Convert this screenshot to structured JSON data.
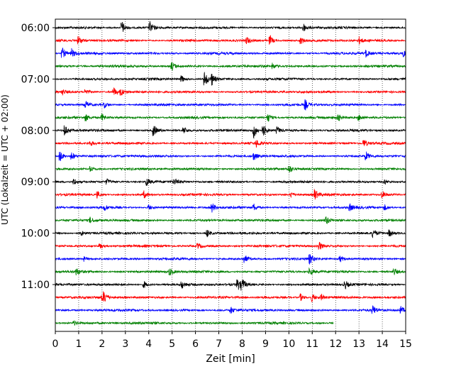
{
  "chart_data": {
    "type": "line",
    "xlabel": "Zeit  [min]",
    "ylabel": "UTC (Lokalzeit = UTC + 02:00)",
    "xlim": [
      0,
      15
    ],
    "x_ticks": [
      "0",
      "1",
      "2",
      "3",
      "4",
      "5",
      "6",
      "7",
      "8",
      "9",
      "10",
      "11",
      "12",
      "13",
      "14",
      "15"
    ],
    "y_ticks": [
      "06:00",
      "07:00",
      "08:00",
      "09:00",
      "10:00",
      "11:00"
    ],
    "grid": "vertical-dotted",
    "traces_per_hour": 4,
    "trace_minutes": 15,
    "color_cycle": [
      "#000000",
      "#ff0000",
      "#0000ff",
      "#008000"
    ],
    "traces": [
      {
        "start": "06:00",
        "end_min": 15,
        "events": [
          [
            2.85,
            1.0
          ],
          [
            4.05,
            0.8
          ],
          [
            10.6,
            0.7
          ]
        ]
      },
      {
        "start": "06:15",
        "end_min": 15,
        "events": [
          [
            1.0,
            0.6
          ],
          [
            8.2,
            0.5
          ],
          [
            9.2,
            0.7
          ],
          [
            10.5,
            0.5
          ],
          [
            13.0,
            0.5
          ]
        ]
      },
      {
        "start": "06:30",
        "end_min": 15,
        "events": [
          [
            0.3,
            0.8
          ],
          [
            0.7,
            0.6
          ],
          [
            13.3,
            0.5
          ],
          [
            14.9,
            0.5
          ]
        ]
      },
      {
        "start": "06:45",
        "end_min": 15,
        "events": [
          [
            5.0,
            0.6
          ],
          [
            9.3,
            0.4
          ]
        ]
      },
      {
        "start": "07:00",
        "end_min": 15,
        "events": [
          [
            5.4,
            0.5
          ],
          [
            6.4,
            1.2
          ],
          [
            6.7,
            0.8
          ]
        ]
      },
      {
        "start": "07:15",
        "end_min": 15,
        "events": [
          [
            0.3,
            0.4
          ],
          [
            1.3,
            0.5
          ],
          [
            2.5,
            0.6
          ],
          [
            2.8,
            0.5
          ]
        ]
      },
      {
        "start": "07:30",
        "end_min": 15,
        "events": [
          [
            1.3,
            0.5
          ],
          [
            2.1,
            0.4
          ],
          [
            10.7,
            0.7
          ]
        ]
      },
      {
        "start": "07:45",
        "end_min": 15,
        "events": [
          [
            1.3,
            0.5
          ],
          [
            2.0,
            0.5
          ],
          [
            9.1,
            0.6
          ],
          [
            12.1,
            0.5
          ],
          [
            13.0,
            0.4
          ]
        ]
      },
      {
        "start": "08:00",
        "end_min": 15,
        "events": [
          [
            0.4,
            0.8
          ],
          [
            4.2,
            0.9
          ],
          [
            5.5,
            0.5
          ],
          [
            8.5,
            1.1
          ],
          [
            8.9,
            0.9
          ],
          [
            9.5,
            0.5
          ]
        ]
      },
      {
        "start": "08:15",
        "end_min": 15,
        "events": [
          [
            1.5,
            0.4
          ],
          [
            8.6,
            0.5
          ],
          [
            13.2,
            0.6
          ]
        ]
      },
      {
        "start": "08:30",
        "end_min": 15,
        "events": [
          [
            0.2,
            0.8
          ],
          [
            0.7,
            0.6
          ],
          [
            8.5,
            0.6
          ],
          [
            13.3,
            0.6
          ]
        ]
      },
      {
        "start": "08:45",
        "end_min": 15,
        "events": [
          [
            1.5,
            0.4
          ],
          [
            10.0,
            0.6
          ]
        ]
      },
      {
        "start": "09:00",
        "end_min": 15,
        "events": [
          [
            0.8,
            0.5
          ],
          [
            2.2,
            0.4
          ],
          [
            3.9,
            0.6
          ],
          [
            5.1,
            0.4
          ],
          [
            14.1,
            0.4
          ]
        ]
      },
      {
        "start": "09:15",
        "end_min": 15,
        "events": [
          [
            1.8,
            0.5
          ],
          [
            3.8,
            0.5
          ],
          [
            10.1,
            0.4
          ],
          [
            11.1,
            0.8
          ],
          [
            14.0,
            0.5
          ]
        ]
      },
      {
        "start": "09:30",
        "end_min": 15,
        "events": [
          [
            2.1,
            0.4
          ],
          [
            4.0,
            0.4
          ],
          [
            6.7,
            0.7
          ],
          [
            8.5,
            0.5
          ],
          [
            12.6,
            0.5
          ],
          [
            14.1,
            0.4
          ]
        ]
      },
      {
        "start": "09:45",
        "end_min": 15,
        "events": [
          [
            1.5,
            0.4
          ],
          [
            11.6,
            0.6
          ]
        ]
      },
      {
        "start": "10:00",
        "end_min": 15,
        "events": [
          [
            1.1,
            0.4
          ],
          [
            6.5,
            0.6
          ],
          [
            13.6,
            0.6
          ],
          [
            14.3,
            0.5
          ]
        ]
      },
      {
        "start": "10:15",
        "end_min": 15,
        "events": [
          [
            1.9,
            0.4
          ],
          [
            6.1,
            0.4
          ],
          [
            11.3,
            0.6
          ]
        ]
      },
      {
        "start": "10:30",
        "end_min": 15,
        "events": [
          [
            1.2,
            0.4
          ],
          [
            8.1,
            0.6
          ],
          [
            10.9,
            0.7
          ],
          [
            12.2,
            0.4
          ]
        ]
      },
      {
        "start": "10:45",
        "end_min": 15,
        "events": [
          [
            0.9,
            0.5
          ],
          [
            4.9,
            0.5
          ],
          [
            10.9,
            0.5
          ],
          [
            14.5,
            0.5
          ]
        ]
      },
      {
        "start": "11:00",
        "end_min": 15,
        "events": [
          [
            3.8,
            0.5
          ],
          [
            5.4,
            0.6
          ],
          [
            7.8,
            0.9
          ],
          [
            8.0,
            0.7
          ],
          [
            12.4,
            0.6
          ]
        ]
      },
      {
        "start": "11:15",
        "end_min": 15,
        "events": [
          [
            2.0,
            0.5
          ],
          [
            2.1,
            0.6
          ],
          [
            10.5,
            0.5
          ],
          [
            11.0,
            0.6
          ],
          [
            11.4,
            0.4
          ]
        ]
      },
      {
        "start": "11:30",
        "end_min": 15,
        "events": [
          [
            7.5,
            0.5
          ],
          [
            13.6,
            0.6
          ],
          [
            14.8,
            0.5
          ]
        ]
      },
      {
        "start": "11:45",
        "end_min": 11.9,
        "events": [
          [
            0.8,
            0.3
          ]
        ]
      }
    ]
  }
}
